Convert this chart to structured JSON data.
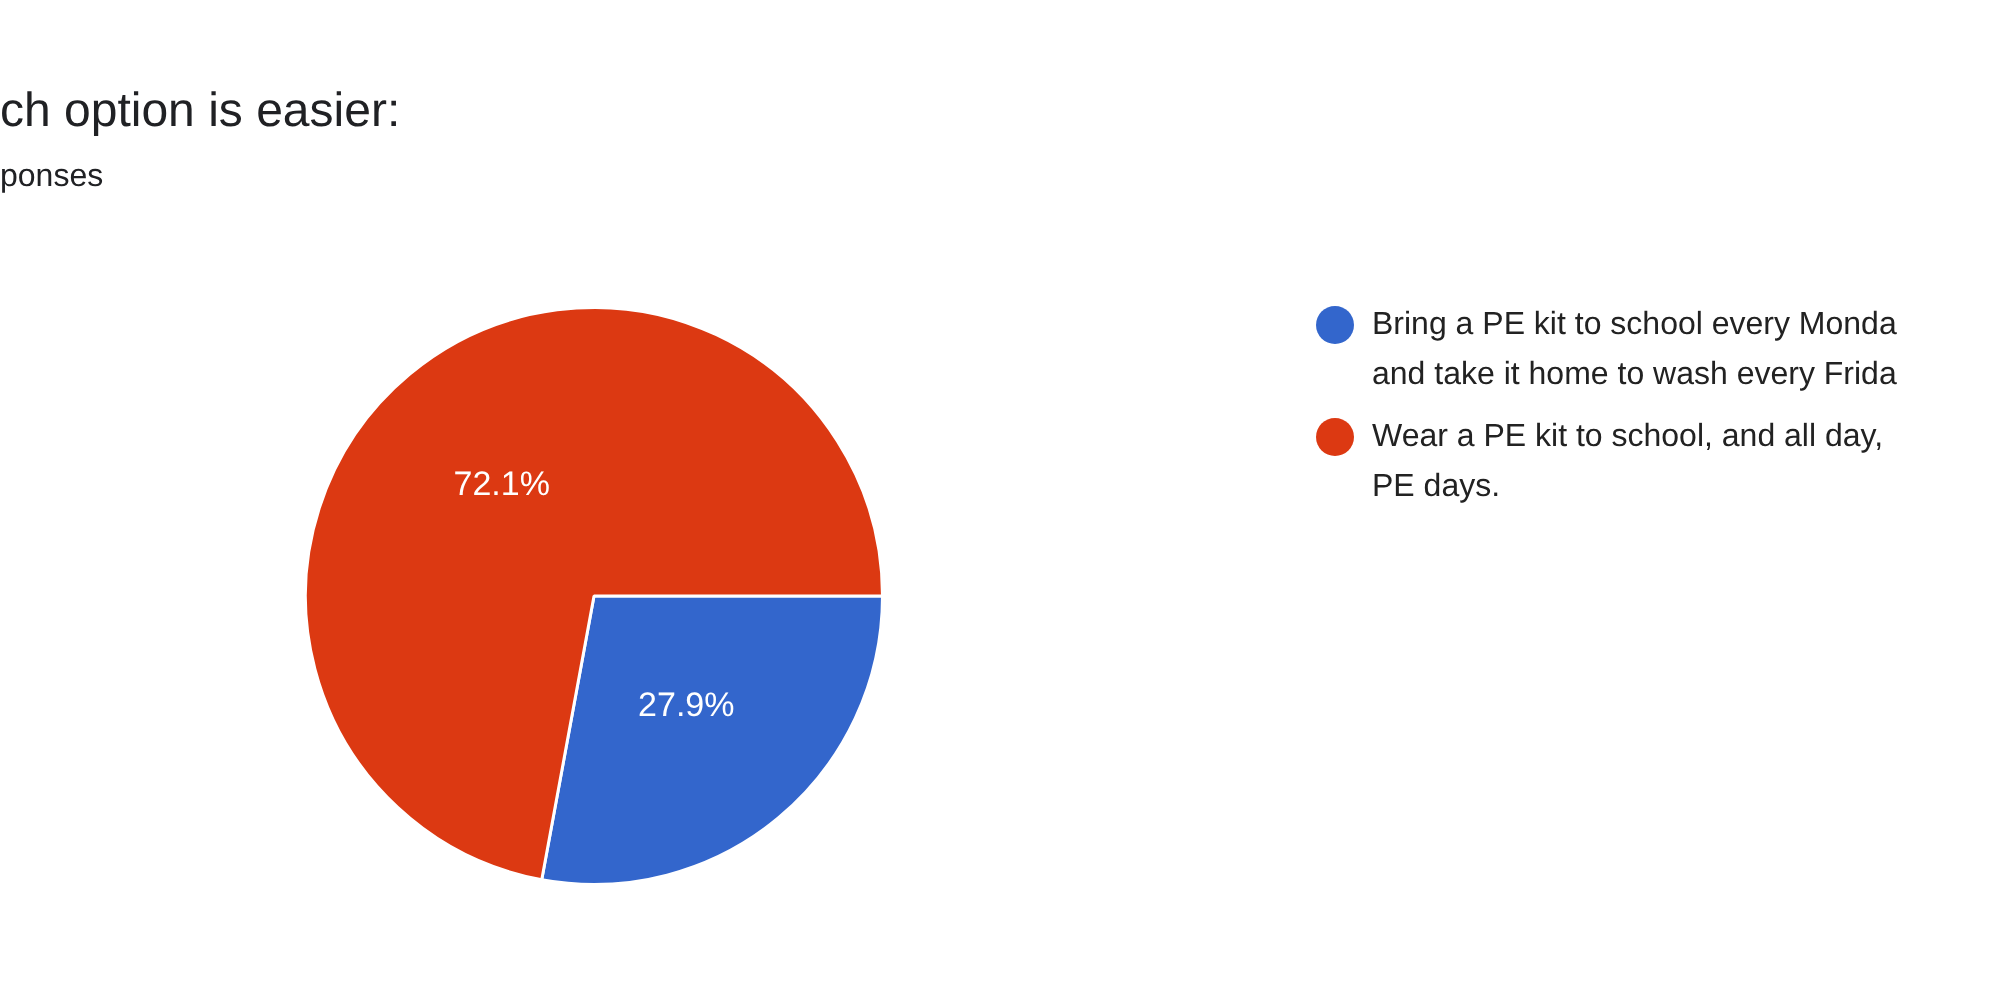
{
  "chart_data": {
    "type": "pie",
    "title": "ch option is easier:",
    "subtitle": "ponses",
    "categories": [
      "Bring a PE kit to school every Monda\nand take it home to wash every Frida",
      "Wear a PE kit to school, and all day,\nPE days."
    ],
    "values": [
      27.9,
      72.1
    ],
    "colors": [
      "#3366cc",
      "#dc3912"
    ],
    "value_labels": [
      "27.9%",
      "72.1%"
    ],
    "legend": "right"
  }
}
